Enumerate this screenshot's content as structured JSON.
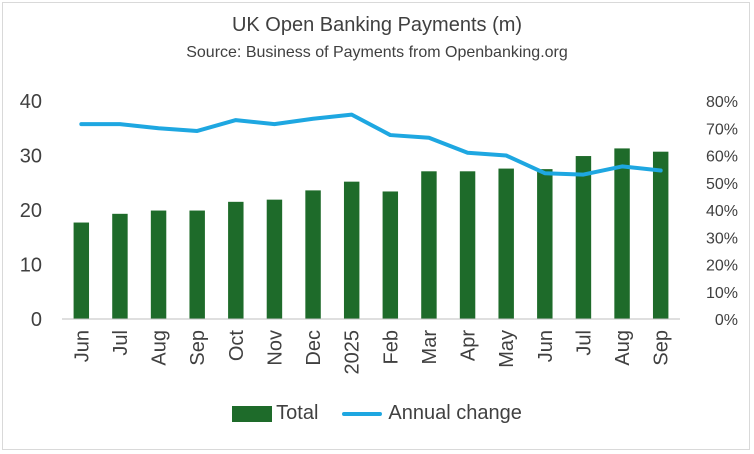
{
  "chart_data": {
    "type": "bar",
    "title": "UK Open Banking Payments (m)",
    "subtitle": "Source: Business of Payments from Openbanking.org",
    "categories": [
      "Jun",
      "Jul",
      "Aug",
      "Sep",
      "Oct",
      "Nov",
      "Dec",
      "2025",
      "Feb",
      "Mar",
      "Apr",
      "May",
      "Jun",
      "Jul",
      "Aug",
      "Sep"
    ],
    "series": [
      {
        "name": "Total",
        "type": "bar",
        "axis": "left",
        "color": "#1e6b2a",
        "values": [
          17.7,
          19.3,
          19.9,
          19.9,
          21.5,
          21.9,
          23.6,
          25.2,
          23.4,
          27.1,
          27.1,
          27.6,
          27.5,
          29.9,
          31.3,
          30.7
        ]
      },
      {
        "name": "Annual change",
        "type": "line",
        "axis": "right",
        "color": "#1ea7e1",
        "values": [
          71.5,
          71.5,
          70.0,
          69.0,
          73.0,
          71.5,
          73.5,
          75.0,
          67.5,
          66.5,
          61.0,
          60.0,
          53.5,
          53.0,
          56.0,
          54.5
        ]
      }
    ],
    "y_left": {
      "min": 0,
      "max": 40,
      "ticks": [
        "0",
        "10",
        "20",
        "30",
        "40"
      ]
    },
    "y_right": {
      "min": 0,
      "max": 80,
      "ticks": [
        "0%",
        "10%",
        "20%",
        "30%",
        "40%",
        "50%",
        "60%",
        "70%",
        "80%"
      ]
    },
    "grid": false,
    "legend": "bottom",
    "legend_labels": [
      "Total",
      "Annual change"
    ]
  }
}
